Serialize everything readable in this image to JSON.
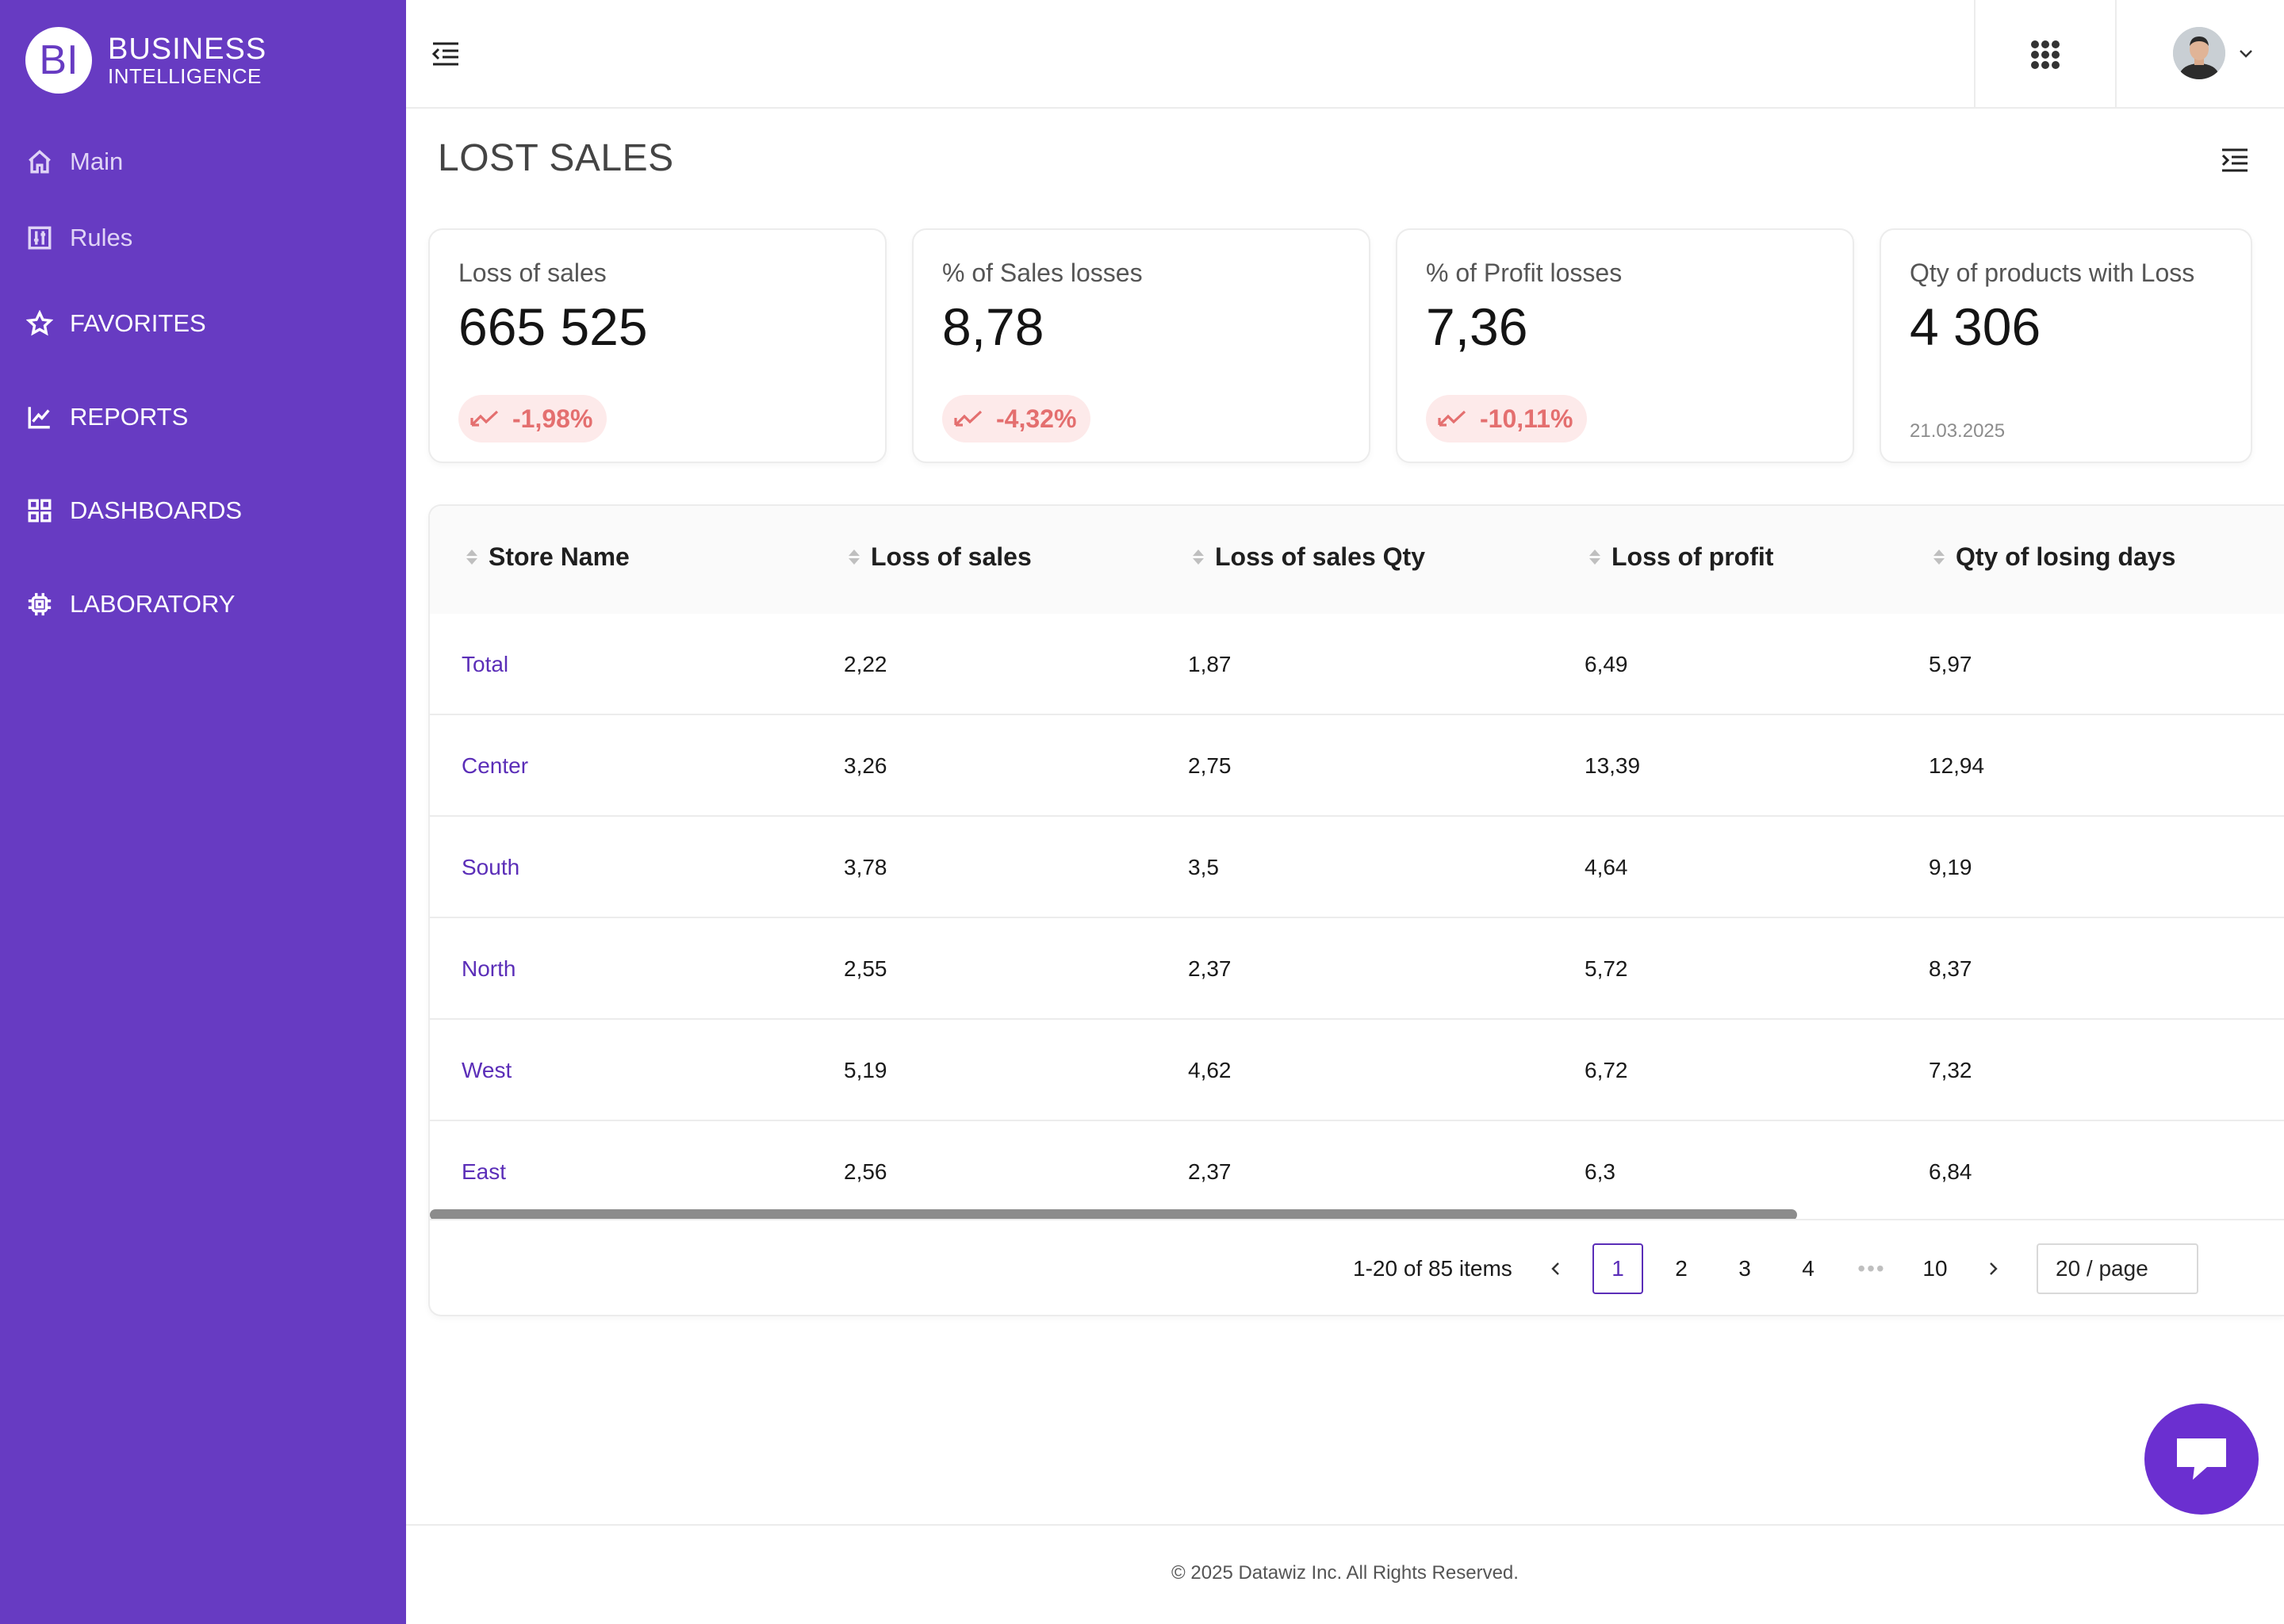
{
  "brand": {
    "logo_mark": "BI",
    "line1": "BUSINESS",
    "line2": "INTELLIGENCE"
  },
  "sidebar": {
    "items": [
      {
        "label": "Main",
        "icon": "home-icon"
      },
      {
        "label": "Rules",
        "icon": "sliders-icon"
      },
      {
        "label": "FAVORITES",
        "icon": "star-icon"
      },
      {
        "label": "REPORTS",
        "icon": "chart-line-icon"
      },
      {
        "label": "DASHBOARDS",
        "icon": "grid-icon"
      },
      {
        "label": "LABORATORY",
        "icon": "chip-icon"
      }
    ]
  },
  "page": {
    "title": "LOST SALES"
  },
  "cards": [
    {
      "label": "Loss of sales",
      "value": "665 525",
      "delta": "-1,98%"
    },
    {
      "label": "% of Sales losses",
      "value": "8,78",
      "delta": "-4,32%"
    },
    {
      "label": "% of Profit losses",
      "value": "7,36",
      "delta": "-10,11%"
    },
    {
      "label": "Qty of products with Loss",
      "value": "4 306",
      "date": "21.03.2025"
    }
  ],
  "table": {
    "columns": [
      "Store Name",
      "Loss of sales",
      "Loss of sales Qty",
      "Loss of profit",
      "Qty of losing days"
    ],
    "rows": [
      [
        "Total",
        "2,22",
        "1,87",
        "6,49",
        "5,97"
      ],
      [
        "Center",
        "3,26",
        "2,75",
        "13,39",
        "12,94"
      ],
      [
        "South",
        "3,78",
        "3,5",
        "4,64",
        "9,19"
      ],
      [
        "North",
        "2,55",
        "2,37",
        "5,72",
        "8,37"
      ],
      [
        "West",
        "5,19",
        "4,62",
        "6,72",
        "7,32"
      ],
      [
        "East",
        "2,56",
        "2,37",
        "6,3",
        "6,84"
      ]
    ]
  },
  "pagination": {
    "info": "1-20 of 85 items",
    "pages": [
      "1",
      "2",
      "3",
      "4",
      "10"
    ],
    "ellipsis": "•••",
    "page_size": "20 / page"
  },
  "footer": {
    "text": "© 2025 Datawiz Inc. All Rights Reserved."
  },
  "colors": {
    "sidebar": "#673bc2",
    "accent": "#5b2eb8",
    "negative": "#e46f6f",
    "chat": "#6b2fd0"
  }
}
